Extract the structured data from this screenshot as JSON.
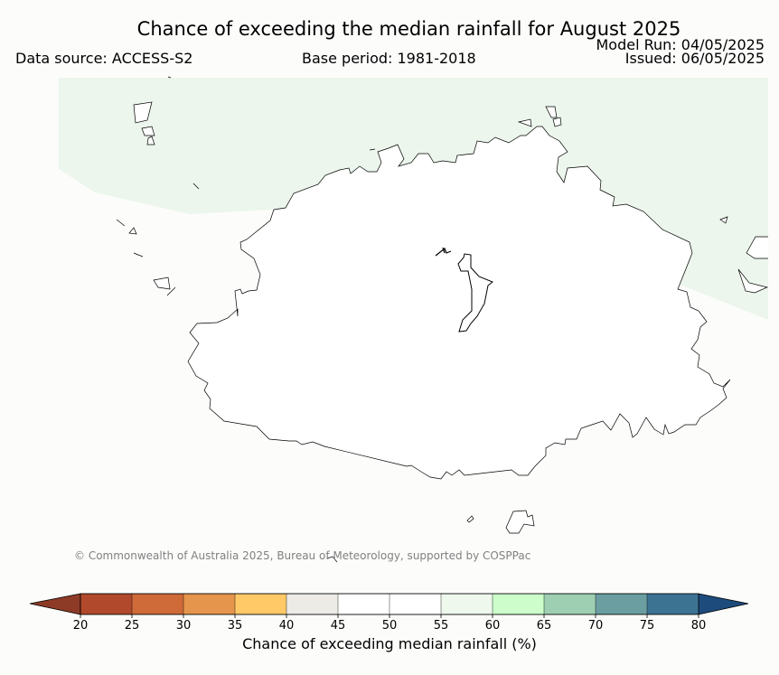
{
  "header": {
    "title": "Chance of exceeding the median rainfall for August 2025",
    "data_source": "Data source: ACCESS-S2",
    "base_period": "Base period: 1981-2018",
    "model_run": "Model Run: 04/05/2025",
    "issued": "Issued: 06/05/2025"
  },
  "footer": {
    "copyright": "© Commonwealth of Australia 2025, Bureau of Meteorology, supported by COSPPac"
  },
  "colorbar": {
    "label": "Chance of exceeding median rainfall (%)",
    "ticks": [
      "20",
      "25",
      "30",
      "35",
      "40",
      "45",
      "50",
      "55",
      "60",
      "65",
      "70",
      "75",
      "80"
    ],
    "colors": [
      "#b14a2c",
      "#cf6a39",
      "#e5954c",
      "#fec966",
      "#ecebe6",
      "#ffffff",
      "#ffffff",
      "#eef8ec",
      "#ccfdca",
      "#9ecfb3",
      "#6b9ea1",
      "#3c7393"
    ],
    "under_color": "#8d3a26",
    "over_color": "#1d4b7b"
  },
  "map": {
    "land_color": "#ffffff",
    "background_color": "#fcfdfb",
    "shaded_region_color": "#ecf6ec",
    "shaded_category": "55-60"
  }
}
